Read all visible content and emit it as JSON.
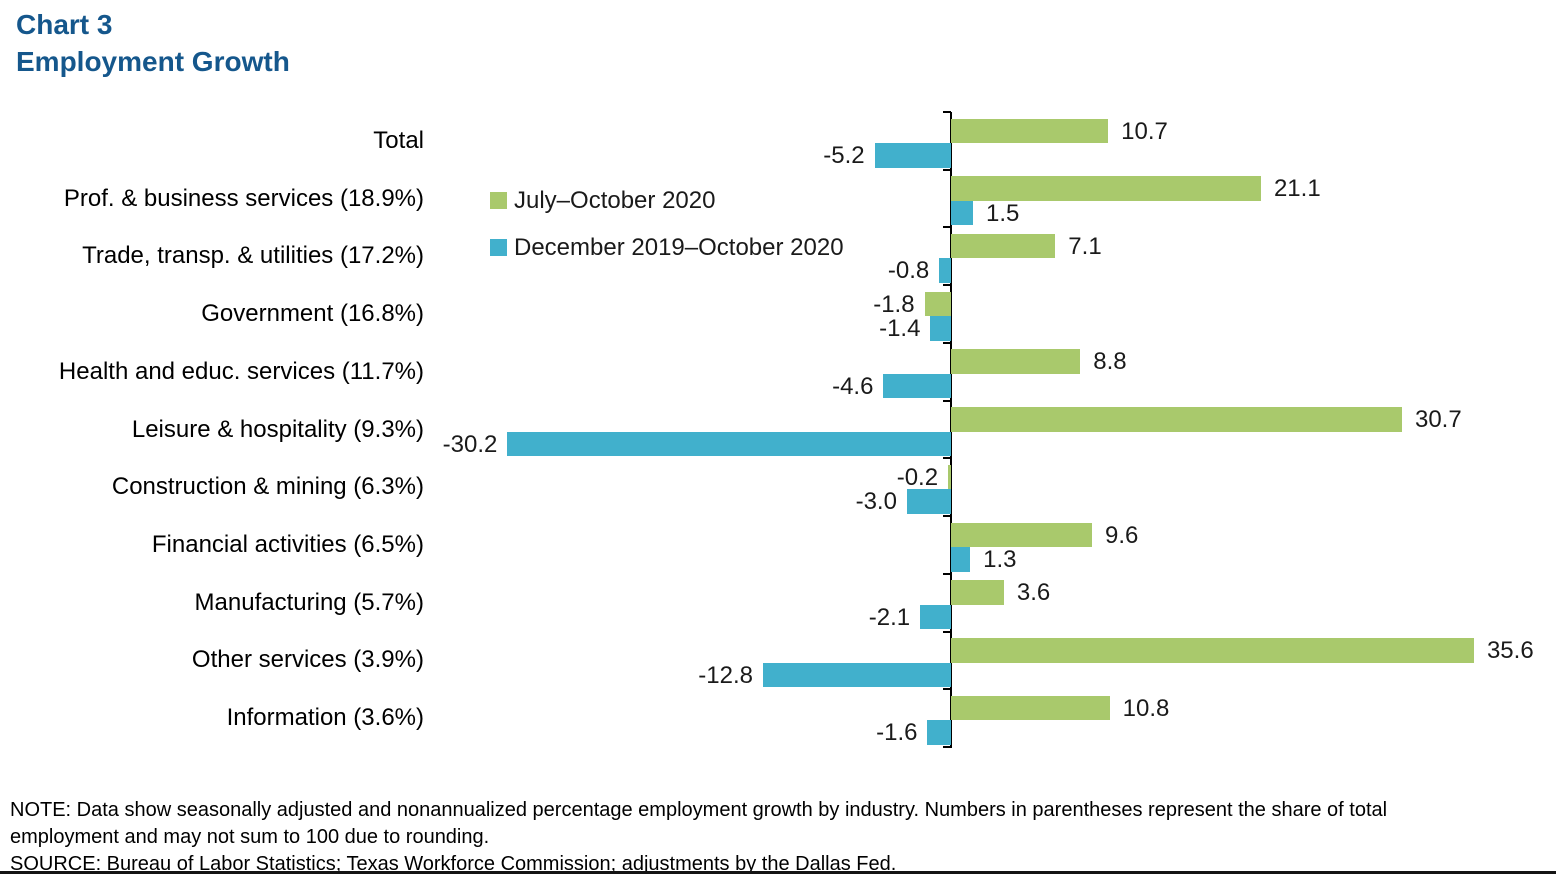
{
  "title": {
    "line1": "Chart 3",
    "line2": "Employment Growth"
  },
  "chart_data": {
    "type": "bar",
    "orientation": "horizontal",
    "title": "Employment Growth",
    "categories": [
      "Total",
      "Prof. & business services (18.9%)",
      "Trade, transp. & utilities (17.2%)",
      "Government (16.8%)",
      "Health and educ. services (11.7%)",
      "Leisure & hospitality (9.3%)",
      "Construction & mining (6.3%)",
      "Financial activities (6.5%)",
      "Manufacturing (5.7%)",
      "Other services (3.9%)",
      "Information (3.6%)"
    ],
    "series": [
      {
        "name": "July–October 2020",
        "color": "#A9C96C",
        "values": [
          10.7,
          21.1,
          7.1,
          -1.8,
          8.8,
          30.7,
          -0.2,
          9.6,
          3.6,
          35.6,
          10.8
        ]
      },
      {
        "name": "December 2019–October 2020",
        "color": "#41B0CC",
        "values": [
          -5.2,
          1.5,
          -0.8,
          -1.4,
          -4.6,
          -30.2,
          -3.0,
          1.3,
          -2.1,
          -12.8,
          -1.6
        ]
      }
    ],
    "value_labels": true,
    "value_label_decimals": 1,
    "xlim": [
      -32,
      38
    ],
    "grid": false,
    "legend_position": "inside-top-left",
    "axis_color": "#000000"
  },
  "note": "NOTE: Data show seasonally adjusted and nonannualized percentage employment growth by industry. Numbers in parentheses represent the share of total employment and may not sum to 100 due to rounding.",
  "source": "SOURCE: Bureau of Labor Statistics; Texas Workforce Commission; adjustments by the Dallas Fed."
}
